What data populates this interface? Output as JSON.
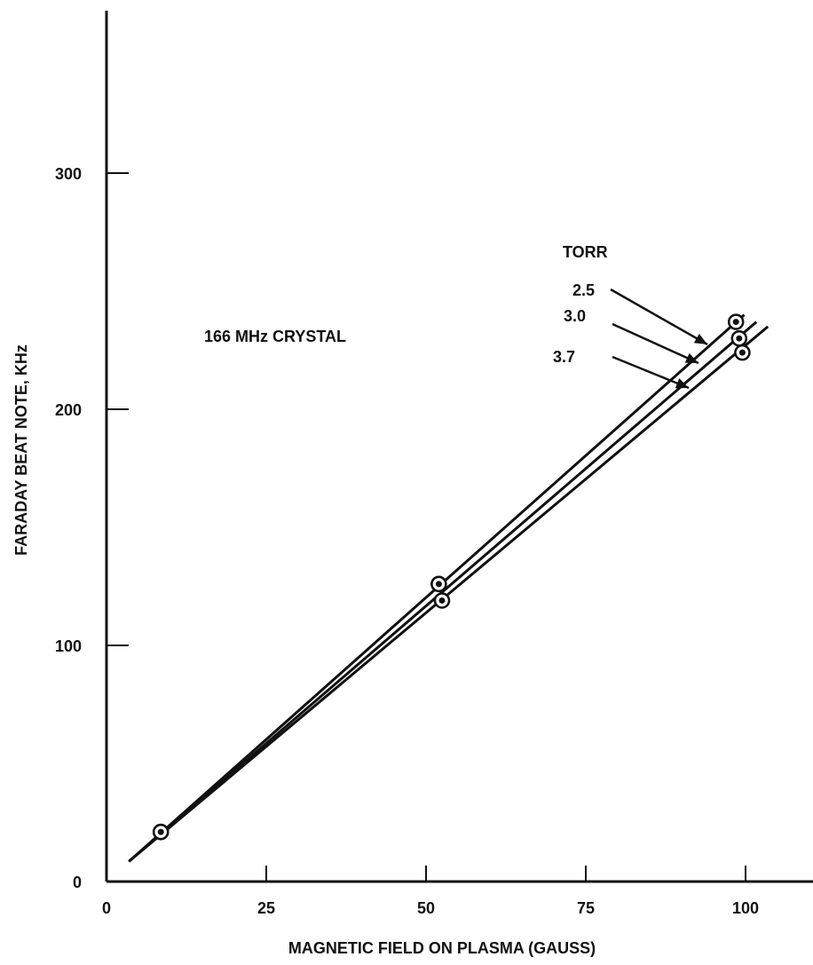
{
  "chart_data": {
    "type": "line",
    "title": "",
    "xlabel": "MAGNETIC FIELD ON PLASMA (GAUSS)",
    "ylabel": "FARADAY BEAT NOTE, KHz",
    "xlim": [
      0,
      110
    ],
    "ylim": [
      0,
      360
    ],
    "xticks": [
      0,
      25,
      50,
      75,
      100
    ],
    "yticks": [
      0,
      100,
      200,
      300
    ],
    "x_tick_labels": [
      "0",
      "25",
      "50",
      "75",
      "100"
    ],
    "y_tick_labels": [
      "0",
      "100",
      "200",
      "300"
    ],
    "grid": false,
    "annotation": "166 MHz CRYSTAL",
    "legend_title": "TORR",
    "series": [
      {
        "name": "2.5",
        "line": [
          [
            3.5,
            8.5
          ],
          [
            99.8,
            240
          ]
        ],
        "points": [
          [
            8.5,
            21
          ],
          [
            52,
            126
          ],
          [
            98.5,
            237
          ]
        ]
      },
      {
        "name": "3.0",
        "line": [
          [
            3.5,
            8.5
          ],
          [
            101.7,
            237
          ]
        ],
        "points": [
          [
            8.5,
            21
          ],
          [
            52,
            126
          ],
          [
            99,
            230
          ]
        ]
      },
      {
        "name": "3.7",
        "line": [
          [
            3.5,
            8.5
          ],
          [
            103.5,
            235
          ]
        ],
        "points": [
          [
            8.5,
            21
          ],
          [
            52.5,
            119
          ],
          [
            99.5,
            224
          ]
        ]
      }
    ],
    "colors": {
      "ink": "#111111",
      "background": "#ffffff"
    }
  }
}
